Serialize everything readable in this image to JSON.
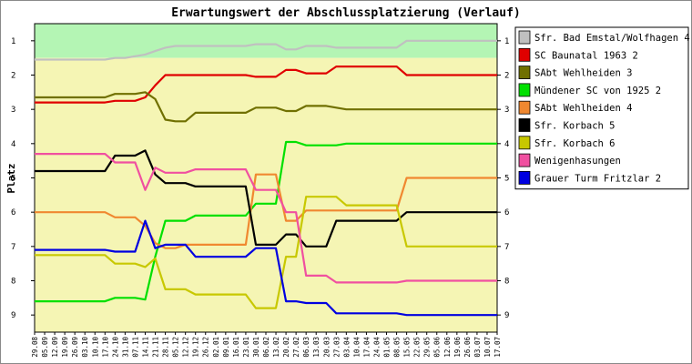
{
  "chart_data": {
    "type": "line",
    "title": "Erwartungswert der Abschlussplatzierung (Verlauf)",
    "ylabel": "Platz",
    "xlabel": "",
    "ylim": [
      0.5,
      9.5
    ],
    "y_inverted": true,
    "yticks": [
      1,
      2,
      3,
      4,
      5,
      6,
      7,
      8,
      9
    ],
    "grid": false,
    "legend_position": "right",
    "background_zones": [
      {
        "name": "promotion",
        "from": 0.5,
        "to": 1.5,
        "color": "#b4f5b4"
      },
      {
        "name": "mid",
        "from": 1.5,
        "to": 9.5,
        "color": "#f5f5b4"
      }
    ],
    "categories": [
      "29.08",
      "05.09",
      "12.09",
      "19.09",
      "26.09",
      "03.10",
      "10.10",
      "17.10",
      "24.10",
      "31.10",
      "07.11",
      "14.11",
      "21.11",
      "28.11",
      "05.12",
      "12.12",
      "19.12",
      "26.12",
      "02.01",
      "09.01",
      "16.01",
      "23.01",
      "30.01",
      "06.02",
      "13.02",
      "20.02",
      "27.02",
      "06.03",
      "13.03",
      "20.03",
      "27.03",
      "03.04",
      "10.04",
      "17.04",
      "24.04",
      "01.05",
      "08.05",
      "15.05",
      "22.05",
      "29.05",
      "05.06",
      "12.06",
      "19.06",
      "26.06",
      "03.07",
      "10.07",
      "17.07"
    ],
    "series": [
      {
        "name": "Sfr. Bad Emstal/Wolfhagen 4",
        "color": "#c0c0c0",
        "values": [
          1.55,
          1.55,
          1.55,
          1.55,
          1.55,
          1.55,
          1.55,
          1.55,
          1.5,
          1.5,
          1.45,
          1.4,
          1.3,
          1.2,
          1.15,
          1.15,
          1.15,
          1.15,
          1.15,
          1.15,
          1.15,
          1.15,
          1.1,
          1.1,
          1.1,
          1.25,
          1.25,
          1.15,
          1.15,
          1.15,
          1.2,
          1.2,
          1.2,
          1.2,
          1.2,
          1.2,
          1.2,
          1.0,
          1.0,
          1.0,
          1.0,
          1.0,
          1.0,
          1.0,
          1.0,
          1.0,
          1.0
        ]
      },
      {
        "name": "SC Baunatal 1963 2",
        "color": "#e00000",
        "values": [
          2.8,
          2.8,
          2.8,
          2.8,
          2.8,
          2.8,
          2.8,
          2.8,
          2.75,
          2.75,
          2.75,
          2.65,
          2.3,
          2.0,
          2.0,
          2.0,
          2.0,
          2.0,
          2.0,
          2.0,
          2.0,
          2.0,
          2.05,
          2.05,
          2.05,
          1.85,
          1.85,
          1.95,
          1.95,
          1.95,
          1.75,
          1.75,
          1.75,
          1.75,
          1.75,
          1.75,
          1.75,
          2.0,
          2.0,
          2.0,
          2.0,
          2.0,
          2.0,
          2.0,
          2.0,
          2.0,
          2.0
        ]
      },
      {
        "name": "SAbt Wehlheiden 3",
        "color": "#707000",
        "values": [
          2.65,
          2.65,
          2.65,
          2.65,
          2.65,
          2.65,
          2.65,
          2.65,
          2.55,
          2.55,
          2.55,
          2.5,
          2.7,
          3.3,
          3.35,
          3.35,
          3.1,
          3.1,
          3.1,
          3.1,
          3.1,
          3.1,
          2.95,
          2.95,
          2.95,
          3.05,
          3.05,
          2.9,
          2.9,
          2.9,
          2.95,
          3.0,
          3.0,
          3.0,
          3.0,
          3.0,
          3.0,
          3.0,
          3.0,
          3.0,
          3.0,
          3.0,
          3.0,
          3.0,
          3.0,
          3.0,
          3.0
        ]
      },
      {
        "name": "Mündener SC von 1925 2",
        "color": "#00e000",
        "values": [
          8.6,
          8.6,
          8.6,
          8.6,
          8.6,
          8.6,
          8.6,
          8.6,
          8.5,
          8.5,
          8.5,
          8.55,
          7.3,
          6.25,
          6.25,
          6.25,
          6.1,
          6.1,
          6.1,
          6.1,
          6.1,
          6.1,
          5.75,
          5.75,
          5.75,
          3.95,
          3.95,
          4.05,
          4.05,
          4.05,
          4.05,
          4.0,
          4.0,
          4.0,
          4.0,
          4.0,
          4.0,
          4.0,
          4.0,
          4.0,
          4.0,
          4.0,
          4.0,
          4.0,
          4.0,
          4.0,
          4.0
        ]
      },
      {
        "name": "SAbt Wehlheiden 4",
        "color": "#f08830",
        "values": [
          6.0,
          6.0,
          6.0,
          6.0,
          6.0,
          6.0,
          6.0,
          6.0,
          6.15,
          6.15,
          6.15,
          6.4,
          6.9,
          7.05,
          7.05,
          6.95,
          6.95,
          6.95,
          6.95,
          6.95,
          6.95,
          6.95,
          4.9,
          4.9,
          4.9,
          6.25,
          6.25,
          5.95,
          5.95,
          5.95,
          5.95,
          5.95,
          5.95,
          5.95,
          5.95,
          5.95,
          5.95,
          5.0,
          5.0,
          5.0,
          5.0,
          5.0,
          5.0,
          5.0,
          5.0,
          5.0,
          5.0
        ]
      },
      {
        "name": "Sfr. Korbach 5",
        "color": "#000000",
        "values": [
          4.8,
          4.8,
          4.8,
          4.8,
          4.8,
          4.8,
          4.8,
          4.8,
          4.35,
          4.35,
          4.35,
          4.2,
          4.9,
          5.15,
          5.15,
          5.15,
          5.25,
          5.25,
          5.25,
          5.25,
          5.25,
          5.25,
          6.95,
          6.95,
          6.95,
          6.65,
          6.65,
          7.0,
          7.0,
          7.0,
          6.25,
          6.25,
          6.25,
          6.25,
          6.25,
          6.25,
          6.25,
          6.0,
          6.0,
          6.0,
          6.0,
          6.0,
          6.0,
          6.0,
          6.0,
          6.0,
          6.0
        ]
      },
      {
        "name": "Sfr. Korbach 6",
        "color": "#c8c800",
        "values": [
          7.25,
          7.25,
          7.25,
          7.25,
          7.25,
          7.25,
          7.25,
          7.25,
          7.5,
          7.5,
          7.5,
          7.6,
          7.35,
          8.25,
          8.25,
          8.25,
          8.4,
          8.4,
          8.4,
          8.4,
          8.4,
          8.4,
          8.8,
          8.8,
          8.8,
          7.3,
          7.3,
          5.55,
          5.55,
          5.55,
          5.55,
          5.8,
          5.8,
          5.8,
          5.8,
          5.8,
          5.8,
          7.0,
          7.0,
          7.0,
          7.0,
          7.0,
          7.0,
          7.0,
          7.0,
          7.0,
          7.0
        ]
      },
      {
        "name": "Wenigenhasungen",
        "color": "#f050a0",
        "values": [
          4.3,
          4.3,
          4.3,
          4.3,
          4.3,
          4.3,
          4.3,
          4.3,
          4.55,
          4.55,
          4.55,
          5.35,
          4.7,
          4.85,
          4.85,
          4.85,
          4.75,
          4.75,
          4.75,
          4.75,
          4.75,
          4.75,
          5.35,
          5.35,
          5.35,
          6.0,
          6.0,
          7.85,
          7.85,
          7.85,
          8.05,
          8.05,
          8.05,
          8.05,
          8.05,
          8.05,
          8.05,
          8.0,
          8.0,
          8.0,
          8.0,
          8.0,
          8.0,
          8.0,
          8.0,
          8.0,
          8.0
        ]
      },
      {
        "name": "Grauer Turm Fritzlar 2",
        "color": "#0000e0",
        "values": [
          7.1,
          7.1,
          7.1,
          7.1,
          7.1,
          7.1,
          7.1,
          7.1,
          7.15,
          7.15,
          7.15,
          6.25,
          7.05,
          6.95,
          6.95,
          6.95,
          7.3,
          7.3,
          7.3,
          7.3,
          7.3,
          7.3,
          7.05,
          7.05,
          7.05,
          8.6,
          8.6,
          8.65,
          8.65,
          8.65,
          8.95,
          8.95,
          8.95,
          8.95,
          8.95,
          8.95,
          8.95,
          9.0,
          9.0,
          9.0,
          9.0,
          9.0,
          9.0,
          9.0,
          9.0,
          9.0,
          9.0
        ]
      }
    ]
  }
}
